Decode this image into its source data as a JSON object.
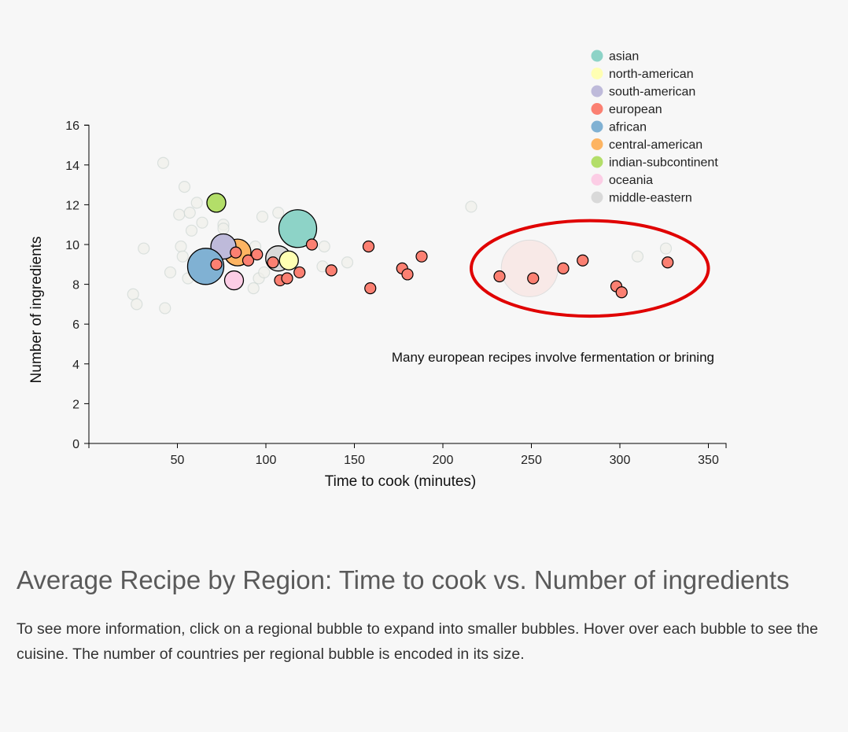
{
  "chart_data": {
    "type": "scatter",
    "xlabel": "Time to cook (minutes)",
    "ylabel": "Number of ingredients",
    "xlim": [
      0,
      360
    ],
    "ylim": [
      0,
      16
    ],
    "xticks": [
      50,
      100,
      150,
      200,
      250,
      300,
      350
    ],
    "yticks": [
      0,
      2,
      4,
      6,
      8,
      10,
      12,
      14,
      16
    ],
    "grid": false,
    "legend_position": "top-right",
    "legend": [
      {
        "name": "asian",
        "color": "#8dd3c7"
      },
      {
        "name": "north-american",
        "color": "#ffffb3"
      },
      {
        "name": "south-american",
        "color": "#bebada"
      },
      {
        "name": "european",
        "color": "#fb8072"
      },
      {
        "name": "african",
        "color": "#80b1d3"
      },
      {
        "name": "central-american",
        "color": "#fdb462"
      },
      {
        "name": "indian-subcontinent",
        "color": "#b3de69"
      },
      {
        "name": "oceania",
        "color": "#fccde5"
      },
      {
        "name": "middle-eastern",
        "color": "#d9d9d9"
      }
    ],
    "annotation": "Many european recipes involve fermentation or brining",
    "highlight_ellipse": {
      "x_center": 283,
      "y_center": 8.8,
      "x_radius": 67,
      "y_radius": 2.4,
      "color": "#e00000"
    },
    "faded_points": [
      {
        "x": 42,
        "y": 14.1,
        "r": 7
      },
      {
        "x": 54,
        "y": 12.9,
        "r": 7
      },
      {
        "x": 61,
        "y": 12.1,
        "r": 7
      },
      {
        "x": 51,
        "y": 11.5,
        "r": 7
      },
      {
        "x": 57,
        "y": 11.6,
        "r": 7
      },
      {
        "x": 58,
        "y": 10.7,
        "r": 7
      },
      {
        "x": 64,
        "y": 11.1,
        "r": 7
      },
      {
        "x": 76,
        "y": 11.0,
        "r": 7
      },
      {
        "x": 76,
        "y": 10.8,
        "r": 7
      },
      {
        "x": 31,
        "y": 9.8,
        "r": 7
      },
      {
        "x": 52,
        "y": 9.9,
        "r": 7
      },
      {
        "x": 53,
        "y": 9.4,
        "r": 7
      },
      {
        "x": 56,
        "y": 8.3,
        "r": 7
      },
      {
        "x": 46,
        "y": 8.6,
        "r": 7
      },
      {
        "x": 25,
        "y": 7.5,
        "r": 7
      },
      {
        "x": 27,
        "y": 7.0,
        "r": 7
      },
      {
        "x": 43,
        "y": 6.8,
        "r": 7
      },
      {
        "x": 98,
        "y": 11.4,
        "r": 7
      },
      {
        "x": 107,
        "y": 11.6,
        "r": 7
      },
      {
        "x": 94,
        "y": 9.9,
        "r": 7
      },
      {
        "x": 96,
        "y": 8.3,
        "r": 7
      },
      {
        "x": 93,
        "y": 7.8,
        "r": 7
      },
      {
        "x": 99,
        "y": 8.6,
        "r": 7
      },
      {
        "x": 120,
        "y": 10.2,
        "r": 7
      },
      {
        "x": 133,
        "y": 9.9,
        "r": 7
      },
      {
        "x": 132,
        "y": 8.9,
        "r": 7
      },
      {
        "x": 146,
        "y": 9.1,
        "r": 7
      },
      {
        "x": 216,
        "y": 11.9,
        "r": 7
      },
      {
        "x": 310,
        "y": 9.4,
        "r": 7
      },
      {
        "x": 326,
        "y": 9.8,
        "r": 7
      },
      {
        "x": 249,
        "y": 8.8,
        "r": 36,
        "color": "#fb8072",
        "opacity": 0.12
      }
    ],
    "region_bubbles": [
      {
        "region": "asian",
        "x": 118,
        "y": 10.8,
        "r": 24,
        "color": "#8dd3c7"
      },
      {
        "region": "indian-subcontinent",
        "x": 72,
        "y": 12.1,
        "r": 12,
        "color": "#b3de69"
      },
      {
        "region": "central-american",
        "x": 84,
        "y": 9.6,
        "r": 17,
        "color": "#fdb462"
      },
      {
        "region": "south-american",
        "x": 76,
        "y": 9.9,
        "r": 16,
        "color": "#bebada"
      },
      {
        "region": "african",
        "x": 66,
        "y": 8.9,
        "r": 23,
        "color": "#80b1d3"
      },
      {
        "region": "oceania",
        "x": 82,
        "y": 8.2,
        "r": 12,
        "color": "#fccde5"
      },
      {
        "region": "middle-eastern",
        "x": 107,
        "y": 9.3,
        "r": 16,
        "color": "#d9d9d9"
      },
      {
        "region": "north-american",
        "x": 113,
        "y": 9.2,
        "r": 12,
        "color": "#ffffb3"
      }
    ],
    "european_points": [
      {
        "x": 72,
        "y": 9.0
      },
      {
        "x": 83,
        "y": 9.6
      },
      {
        "x": 90,
        "y": 9.2
      },
      {
        "x": 95,
        "y": 9.5
      },
      {
        "x": 104,
        "y": 9.1
      },
      {
        "x": 108,
        "y": 8.2
      },
      {
        "x": 112,
        "y": 8.3
      },
      {
        "x": 119,
        "y": 8.6
      },
      {
        "x": 126,
        "y": 10.0
      },
      {
        "x": 137,
        "y": 8.7
      },
      {
        "x": 158,
        "y": 9.9
      },
      {
        "x": 159,
        "y": 7.8
      },
      {
        "x": 177,
        "y": 8.8
      },
      {
        "x": 180,
        "y": 8.5
      },
      {
        "x": 188,
        "y": 9.4
      },
      {
        "x": 232,
        "y": 8.4
      },
      {
        "x": 251,
        "y": 8.3
      },
      {
        "x": 268,
        "y": 8.8
      },
      {
        "x": 279,
        "y": 9.2
      },
      {
        "x": 298,
        "y": 7.9
      },
      {
        "x": 301,
        "y": 7.6
      },
      {
        "x": 327,
        "y": 9.1
      }
    ]
  },
  "description": {
    "title": "Average Recipe by Region: Time to cook vs. Number of ingredients",
    "body": "To see more information, click on a regional bubble to expand into smaller bubbles. Hover over each bubble to see the cuisine. The number of countries per regional bubble is encoded in its size."
  }
}
